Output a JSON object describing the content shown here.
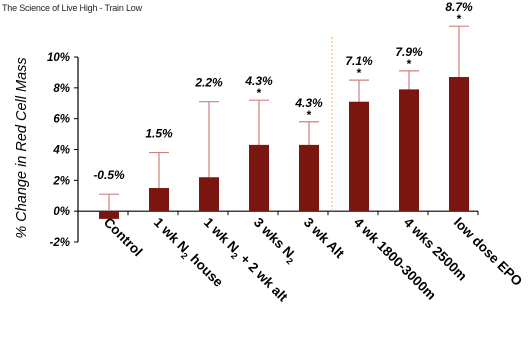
{
  "header": {
    "title": "The Science of Live High - Train Low"
  },
  "chart_data": {
    "type": "bar",
    "ylabel": "% Change in Red Cell Mass",
    "ylim": [
      -2,
      10
    ],
    "yticks": [
      -2,
      0,
      2,
      4,
      6,
      8,
      10
    ],
    "ytick_labels": [
      "-2%",
      "0%",
      "2%",
      "4%",
      "6%",
      "8%",
      "10%"
    ],
    "categories": [
      {
        "main": "Control",
        "sub": "",
        "rest": ""
      },
      {
        "main": "1 wk N",
        "sub": "2",
        "rest": " house"
      },
      {
        "main": "1 wk N",
        "sub": "2",
        "rest": " + 2 wk alt"
      },
      {
        "main": "3 wks N",
        "sub": "2",
        "rest": ""
      },
      {
        "main": "3 wk Alt",
        "sub": "",
        "rest": ""
      },
      {
        "main": "4 wk 1800-3000m",
        "sub": "",
        "rest": ""
      },
      {
        "main": "4 wks 2500m",
        "sub": "",
        "rest": ""
      },
      {
        "main": "low dose EPO",
        "sub": "",
        "rest": ""
      }
    ],
    "values": [
      -0.5,
      1.5,
      2.2,
      4.3,
      4.3,
      7.1,
      7.9,
      8.7
    ],
    "error_upper": [
      1.1,
      3.8,
      7.1,
      7.2,
      5.8,
      8.5,
      9.1,
      12.0
    ],
    "value_labels": [
      "-0.5%",
      "1.5%",
      "2.2%",
      "4.3%",
      "4.3%",
      "7.1%",
      "7.9%",
      "8.7%"
    ],
    "significance": [
      "",
      "",
      "",
      "*",
      "*",
      "*",
      "*",
      "*"
    ],
    "divider_after_index": 4,
    "colors": {
      "bar": "#7a1510",
      "error": "#d08080",
      "divider": "#f0c070",
      "axis": "#000000"
    }
  }
}
